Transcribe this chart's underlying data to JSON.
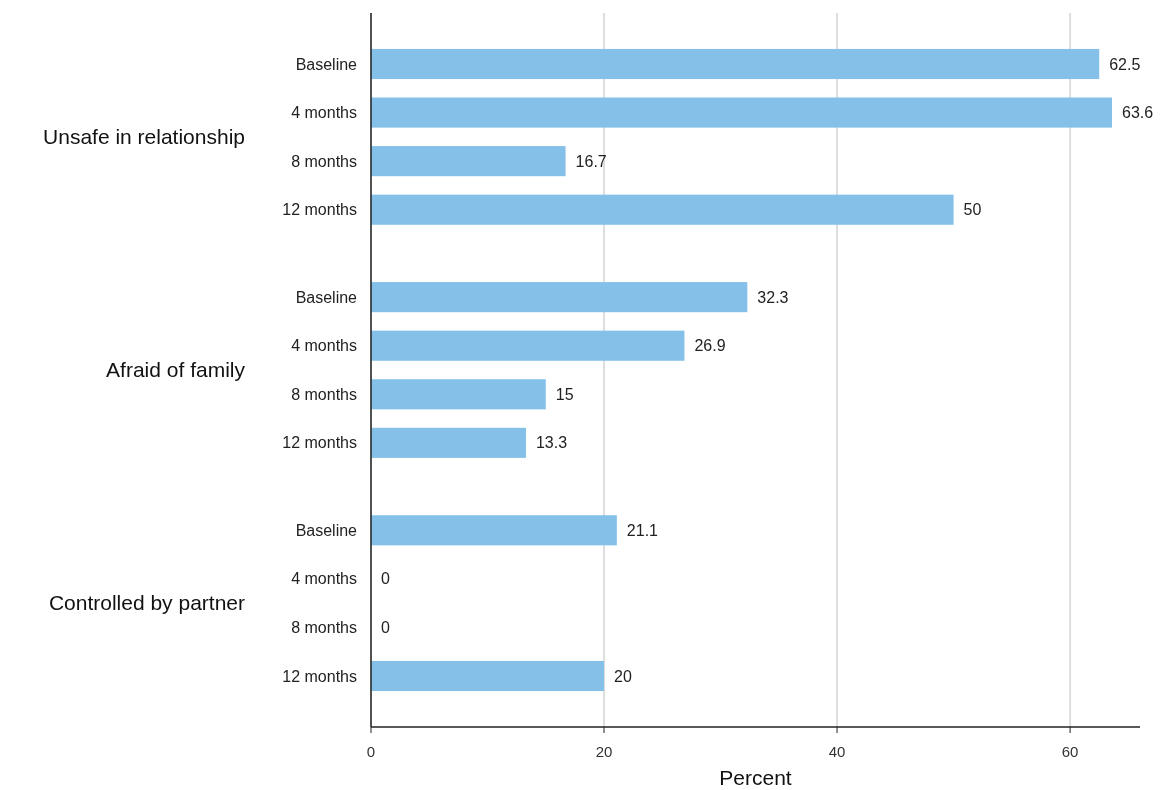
{
  "chart_data": {
    "type": "bar",
    "orientation": "horizontal",
    "xlabel": "Percent",
    "categories": [
      "Baseline",
      "4 months",
      "8 months",
      "12 months",
      "Baseline",
      "4 months",
      "8 months",
      "12 months",
      "Baseline",
      "4 months",
      "8 months",
      "12 months"
    ],
    "values": [
      62.5,
      63.6,
      16.7,
      50,
      32.3,
      26.9,
      15,
      13.3,
      21.1,
      0,
      0,
      20
    ],
    "color": "#85c0e9",
    "annotations": [
      "Unsafe in relationship",
      "Afraid of family",
      "Controlled by partner"
    ],
    "xlim": [
      0,
      66
    ],
    "xticks": [
      0,
      20,
      40,
      60
    ],
    "grid": "x",
    "data_labels": true
  }
}
